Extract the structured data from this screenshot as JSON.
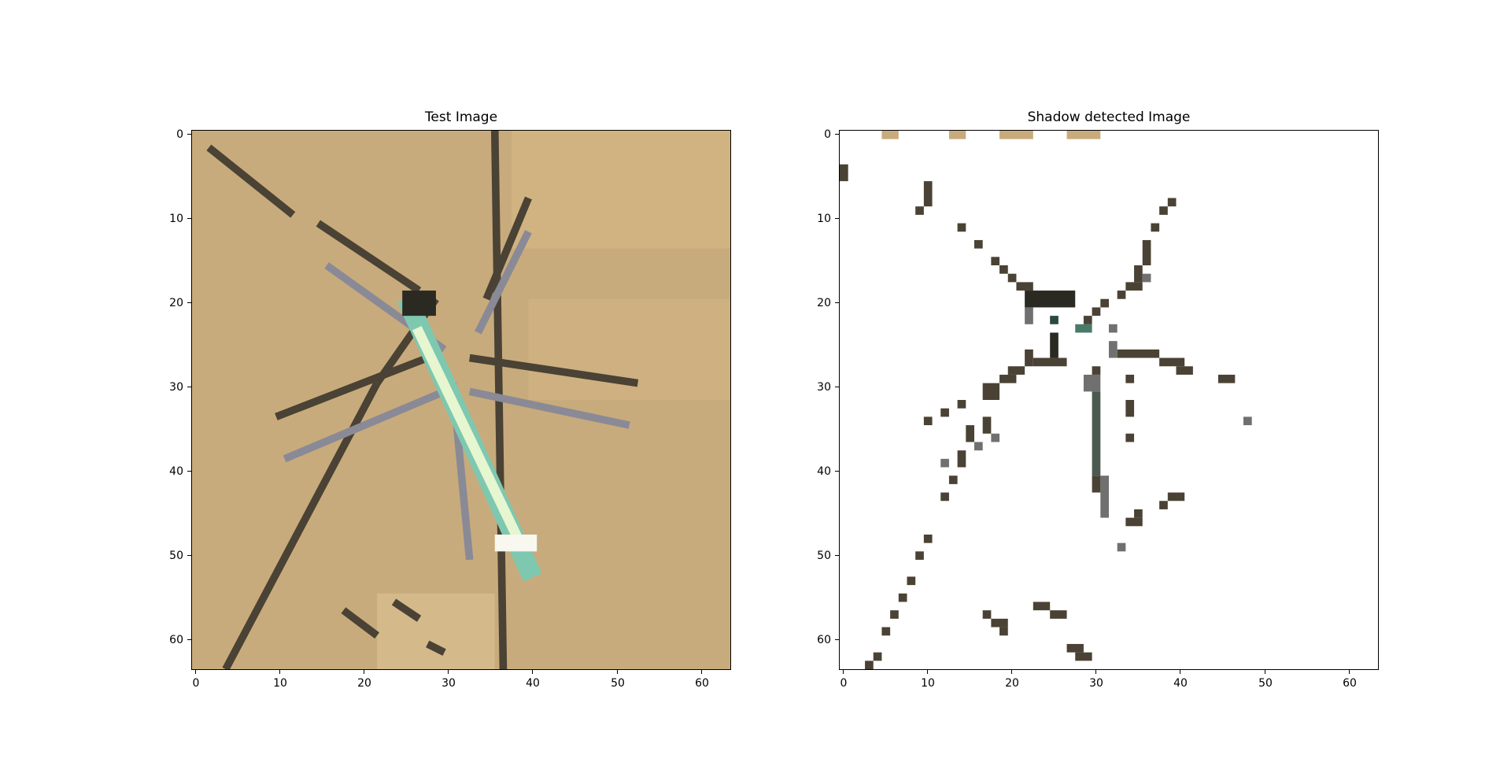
{
  "figure": {
    "left_panel": {
      "title": "Test Image",
      "x_ticks": [
        "0",
        "10",
        "20",
        "30",
        "40",
        "50",
        "60"
      ],
      "y_ticks": [
        "0",
        "10",
        "20",
        "30",
        "40",
        "50",
        "60"
      ],
      "grid_size": 64,
      "description": "64x64 pixelated aerial image of a tan sandy surface with a bright pale-green/white elongated object diagonally through center and dark radiating streaks",
      "colors": {
        "background": "#c8ab7c",
        "streak": "#4a4234",
        "highlight": "#d8f0c8",
        "gray_streak": "#8a8a96"
      }
    },
    "right_panel": {
      "title": "Shadow detected Image",
      "x_ticks": [
        "0",
        "10",
        "20",
        "30",
        "40",
        "50",
        "60"
      ],
      "y_ticks": [
        "0",
        "10",
        "20",
        "30",
        "40",
        "50",
        "60"
      ],
      "grid_size": 64,
      "description": "White background with sparse dark pixels marking detected shadow streaks",
      "colors": {
        "background": "#ffffff",
        "pixel_dark": "#4a4234",
        "pixel_gray": "#707070",
        "pixel_tan": "#c8ab7c"
      }
    }
  }
}
